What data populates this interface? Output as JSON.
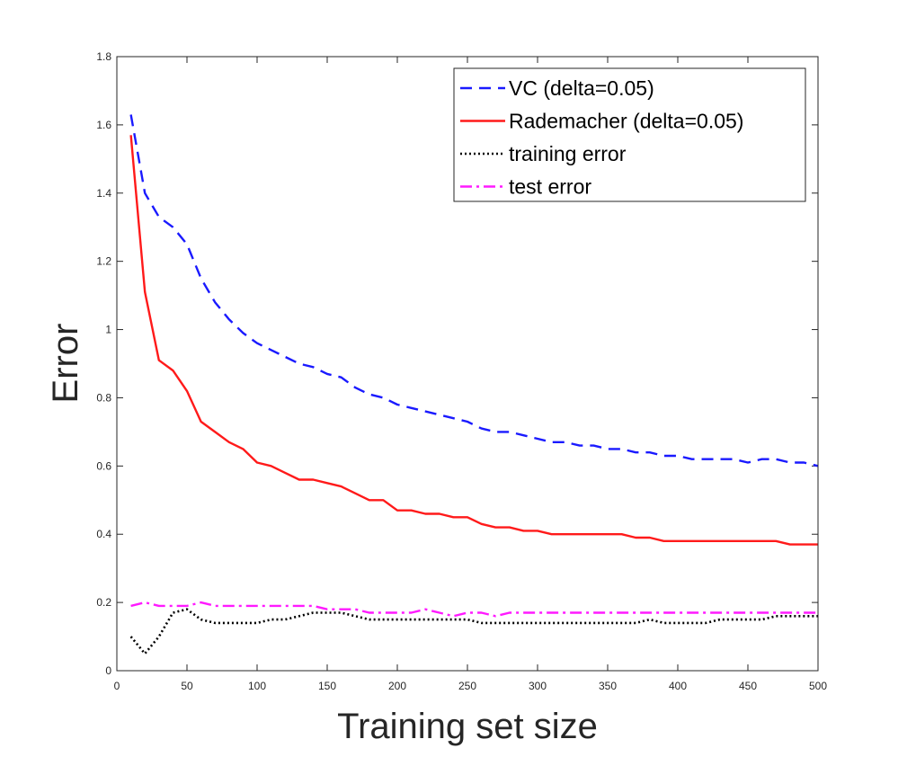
{
  "chart_data": {
    "type": "line",
    "xlabel": "Training set size",
    "ylabel": "Error",
    "xlim": [
      0,
      500
    ],
    "ylim": [
      0,
      1.8
    ],
    "xticks": [
      "0",
      "50",
      "100",
      "150",
      "200",
      "250",
      "300",
      "350",
      "400",
      "450",
      "500"
    ],
    "yticks": [
      "0",
      "0.2",
      "0.4",
      "0.6",
      "0.8",
      "1",
      "1.2",
      "1.4",
      "1.6",
      "1.8"
    ],
    "grid": false,
    "legend_position": "top-right",
    "x": [
      10,
      20,
      30,
      40,
      50,
      60,
      70,
      80,
      90,
      100,
      110,
      120,
      130,
      140,
      150,
      160,
      170,
      180,
      190,
      200,
      210,
      220,
      230,
      240,
      250,
      260,
      270,
      280,
      290,
      300,
      310,
      320,
      330,
      340,
      350,
      360,
      370,
      380,
      390,
      400,
      410,
      420,
      430,
      440,
      450,
      460,
      470,
      480,
      490,
      500
    ],
    "series": [
      {
        "name": "VC (delta=0.05)",
        "color": "#1a1aff",
        "style": "dashed",
        "values": [
          1.63,
          1.4,
          1.33,
          1.3,
          1.25,
          1.15,
          1.08,
          1.03,
          0.99,
          0.96,
          0.94,
          0.92,
          0.9,
          0.89,
          0.87,
          0.86,
          0.83,
          0.81,
          0.8,
          0.78,
          0.77,
          0.76,
          0.75,
          0.74,
          0.73,
          0.71,
          0.7,
          0.7,
          0.69,
          0.68,
          0.67,
          0.67,
          0.66,
          0.66,
          0.65,
          0.65,
          0.64,
          0.64,
          0.63,
          0.63,
          0.62,
          0.62,
          0.62,
          0.62,
          0.61,
          0.62,
          0.62,
          0.61,
          0.61,
          0.6
        ]
      },
      {
        "name": "Rademacher (delta=0.05)",
        "color": "#ff1a1a",
        "style": "solid",
        "values": [
          1.57,
          1.11,
          0.91,
          0.88,
          0.82,
          0.73,
          0.7,
          0.67,
          0.65,
          0.61,
          0.6,
          0.58,
          0.56,
          0.56,
          0.55,
          0.54,
          0.52,
          0.5,
          0.5,
          0.47,
          0.47,
          0.46,
          0.46,
          0.45,
          0.45,
          0.43,
          0.42,
          0.42,
          0.41,
          0.41,
          0.4,
          0.4,
          0.4,
          0.4,
          0.4,
          0.4,
          0.39,
          0.39,
          0.38,
          0.38,
          0.38,
          0.38,
          0.38,
          0.38,
          0.38,
          0.38,
          0.38,
          0.37,
          0.37,
          0.37
        ]
      },
      {
        "name": "training error",
        "color": "#000000",
        "style": "dotted",
        "values": [
          0.1,
          0.05,
          0.1,
          0.17,
          0.18,
          0.15,
          0.14,
          0.14,
          0.14,
          0.14,
          0.15,
          0.15,
          0.16,
          0.17,
          0.17,
          0.17,
          0.16,
          0.15,
          0.15,
          0.15,
          0.15,
          0.15,
          0.15,
          0.15,
          0.15,
          0.14,
          0.14,
          0.14,
          0.14,
          0.14,
          0.14,
          0.14,
          0.14,
          0.14,
          0.14,
          0.14,
          0.14,
          0.15,
          0.14,
          0.14,
          0.14,
          0.14,
          0.15,
          0.15,
          0.15,
          0.15,
          0.16,
          0.16,
          0.16,
          0.16
        ]
      },
      {
        "name": "test error",
        "color": "#ff1aff",
        "style": "dashdot",
        "values": [
          0.19,
          0.2,
          0.19,
          0.19,
          0.19,
          0.2,
          0.19,
          0.19,
          0.19,
          0.19,
          0.19,
          0.19,
          0.19,
          0.19,
          0.18,
          0.18,
          0.18,
          0.17,
          0.17,
          0.17,
          0.17,
          0.18,
          0.17,
          0.16,
          0.17,
          0.17,
          0.16,
          0.17,
          0.17,
          0.17,
          0.17,
          0.17,
          0.17,
          0.17,
          0.17,
          0.17,
          0.17,
          0.17,
          0.17,
          0.17,
          0.17,
          0.17,
          0.17,
          0.17,
          0.17,
          0.17,
          0.17,
          0.17,
          0.17,
          0.17
        ]
      }
    ]
  }
}
